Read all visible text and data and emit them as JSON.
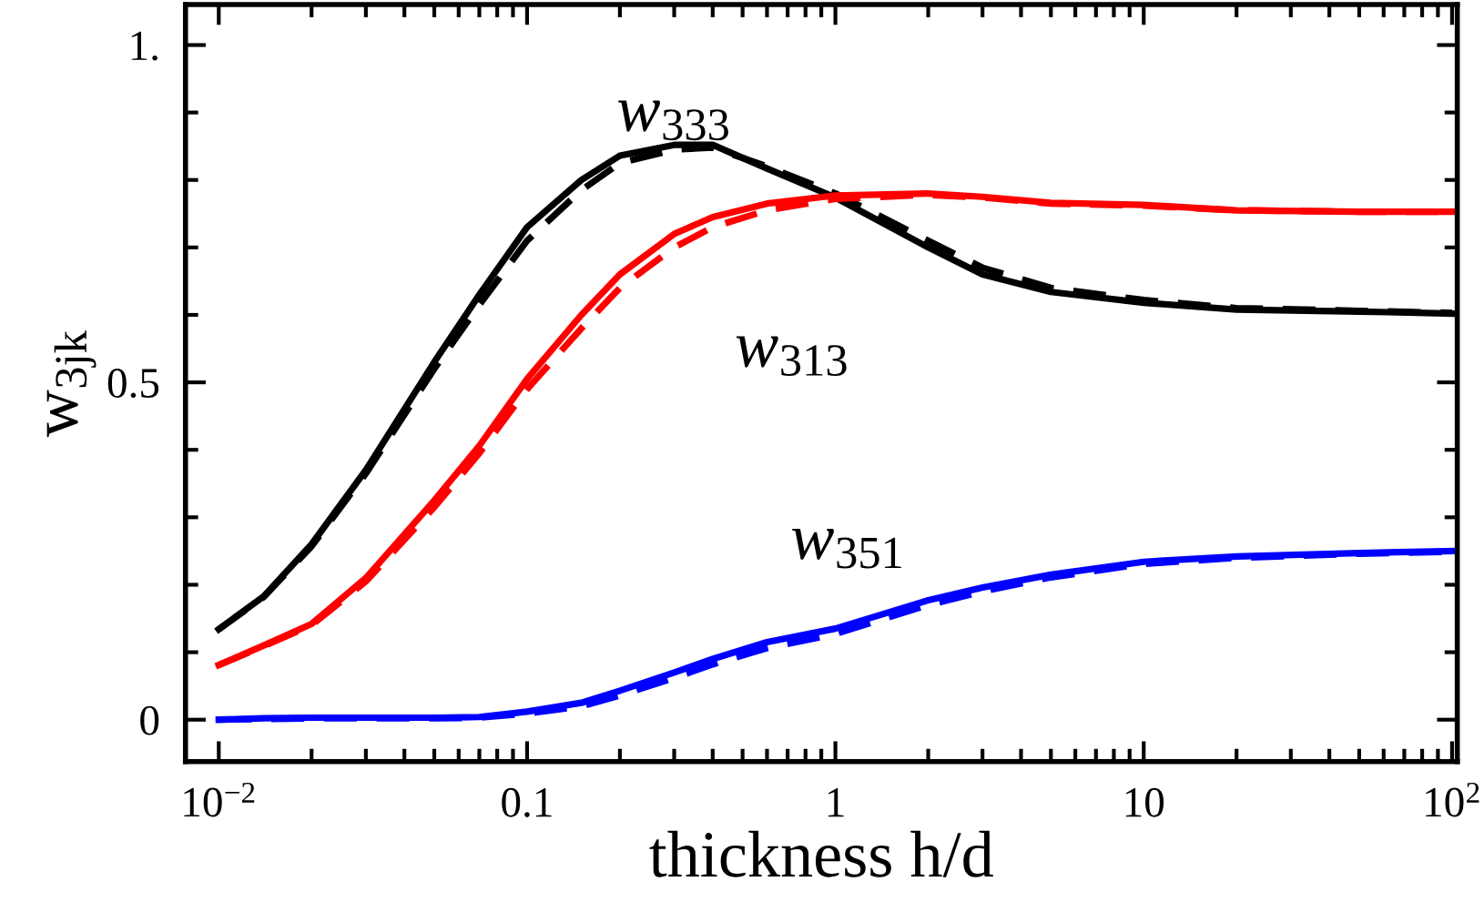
{
  "chart_data": {
    "type": "line",
    "xlabel": "thickness h/d",
    "ylabel": "w$_{3jk}$",
    "log": "x",
    "grid": false,
    "legend": false,
    "marker": "none",
    "xlim": [
      0.0078,
      104
    ],
    "ylim": [
      -0.062,
      1.06
    ],
    "xticks": [
      {
        "value": 0.01,
        "label": "10$^{−2}$"
      },
      {
        "value": 0.1,
        "label": "0.1"
      },
      {
        "value": 1,
        "label": "1"
      },
      {
        "value": 10,
        "label": "10"
      },
      {
        "value": 100,
        "label": "10$^{2}$"
      },
      {
        "value": 0.02,
        "label": null
      },
      {
        "value": 0.03,
        "label": null
      },
      {
        "value": 0.04,
        "label": null
      },
      {
        "value": 0.05,
        "label": null
      },
      {
        "value": 0.06,
        "label": null
      },
      {
        "value": 0.07,
        "label": null
      },
      {
        "value": 0.08,
        "label": null
      },
      {
        "value": 0.09,
        "label": null
      },
      {
        "value": 0.2,
        "label": null
      },
      {
        "value": 0.3,
        "label": null
      },
      {
        "value": 0.4,
        "label": null
      },
      {
        "value": 0.5,
        "label": null
      },
      {
        "value": 0.6,
        "label": null
      },
      {
        "value": 0.7,
        "label": null
      },
      {
        "value": 0.8,
        "label": null
      },
      {
        "value": 0.9,
        "label": null
      },
      {
        "value": 2,
        "label": null
      },
      {
        "value": 3,
        "label": null
      },
      {
        "value": 4,
        "label": null
      },
      {
        "value": 5,
        "label": null
      },
      {
        "value": 6,
        "label": null
      },
      {
        "value": 7,
        "label": null
      },
      {
        "value": 8,
        "label": null
      },
      {
        "value": 9,
        "label": null
      },
      {
        "value": 20,
        "label": null
      },
      {
        "value": 30,
        "label": null
      },
      {
        "value": 40,
        "label": null
      },
      {
        "value": 50,
        "label": null
      },
      {
        "value": 60,
        "label": null
      },
      {
        "value": 70,
        "label": null
      },
      {
        "value": 80,
        "label": null
      },
      {
        "value": 90,
        "label": null
      }
    ],
    "yticks": [
      {
        "value": 0,
        "label": "0"
      },
      {
        "value": 0.5,
        "label": "0.5"
      },
      {
        "value": 1,
        "label": "1."
      },
      {
        "value": 0.1,
        "label": null
      },
      {
        "value": 0.2,
        "label": null
      },
      {
        "value": 0.3,
        "label": null
      },
      {
        "value": 0.4,
        "label": null
      },
      {
        "value": 0.6,
        "label": null
      },
      {
        "value": 0.7,
        "label": null
      },
      {
        "value": 0.8,
        "label": null
      },
      {
        "value": 0.9,
        "label": null
      }
    ],
    "x": [
      0.01,
      0.014,
      0.02,
      0.03,
      0.05,
      0.07,
      0.1,
      0.15,
      0.2,
      0.3,
      0.4,
      0.6,
      1,
      2,
      3,
      5,
      10,
      20,
      50,
      100
    ],
    "series": [
      {
        "name": "w$_{333}$",
        "color": "#000000",
        "line_style": "solid",
        "values": [
          0.134,
          0.183,
          0.26,
          0.37,
          0.53,
          0.63,
          0.73,
          0.8,
          0.836,
          0.852,
          0.852,
          0.817,
          0.774,
          0.7,
          0.66,
          0.634,
          0.618,
          0.608,
          0.605,
          0.602
        ]
      },
      {
        "color": "#000000",
        "line_style": "dashed",
        "values": [
          0.134,
          0.182,
          0.257,
          0.365,
          0.52,
          0.615,
          0.71,
          0.785,
          0.825,
          0.845,
          0.848,
          0.82,
          0.78,
          0.71,
          0.67,
          0.64,
          0.622,
          0.61,
          0.606,
          0.603
        ]
      },
      {
        "name": "w$_{313}$",
        "color": "#ff0000",
        "line_style": "solid",
        "values": [
          0.081,
          0.11,
          0.142,
          0.21,
          0.325,
          0.406,
          0.505,
          0.6,
          0.66,
          0.72,
          0.745,
          0.765,
          0.777,
          0.78,
          0.775,
          0.766,
          0.763,
          0.755,
          0.753,
          0.753
        ]
      },
      {
        "color": "#ff0000",
        "line_style": "dashed",
        "values": [
          0.081,
          0.109,
          0.14,
          0.205,
          0.315,
          0.395,
          0.49,
          0.58,
          0.64,
          0.7,
          0.73,
          0.755,
          0.772,
          0.778,
          0.774,
          0.765,
          0.762,
          0.755,
          0.753,
          0.753
        ]
      },
      {
        "name": "w$_{351}$",
        "color": "#0000ff",
        "line_style": "solid",
        "values": [
          0.0,
          0.002,
          0.003,
          0.003,
          0.003,
          0.004,
          0.012,
          0.025,
          0.043,
          0.07,
          0.09,
          0.115,
          0.135,
          0.177,
          0.196,
          0.215,
          0.234,
          0.242,
          0.247,
          0.25
        ]
      },
      {
        "color": "#0000ff",
        "line_style": "dashed",
        "values": [
          0.0,
          0.001,
          0.002,
          0.002,
          0.002,
          0.003,
          0.009,
          0.02,
          0.036,
          0.062,
          0.082,
          0.106,
          0.127,
          0.17,
          0.19,
          0.211,
          0.231,
          0.24,
          0.246,
          0.249
        ]
      }
    ]
  }
}
